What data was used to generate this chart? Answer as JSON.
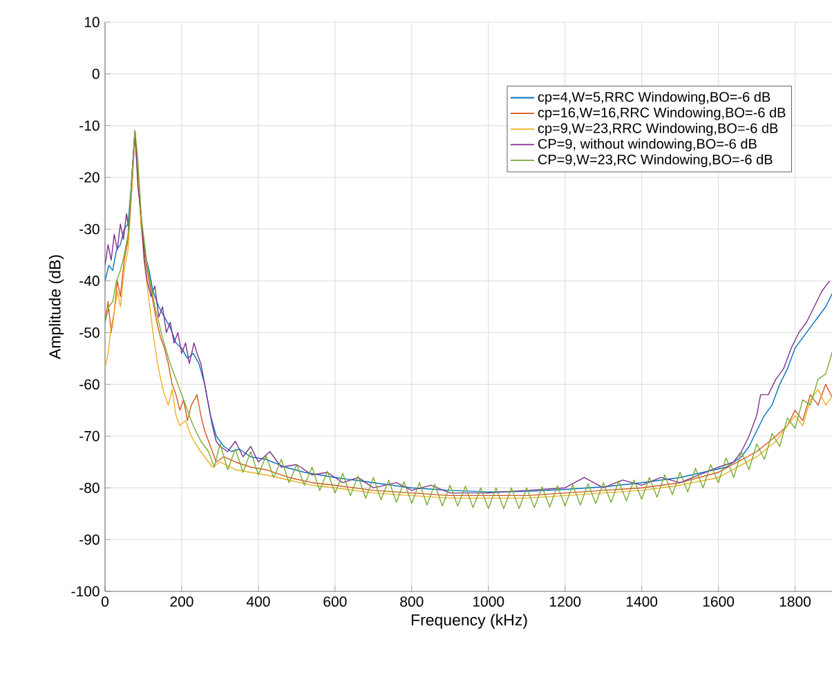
{
  "chart_data": {
    "type": "line",
    "xlabel": "Frequency (kHz)",
    "ylabel": "Amplitude (dB)",
    "xlim": [
      0,
      1900
    ],
    "ylim": [
      -100,
      10
    ],
    "xticks": [
      0,
      200,
      400,
      600,
      800,
      1000,
      1200,
      1400,
      1600,
      1800
    ],
    "yticks": [
      -100,
      -90,
      -80,
      -70,
      -60,
      -50,
      -40,
      -30,
      -20,
      -10,
      0,
      10
    ],
    "grid": true,
    "legend": "top right",
    "marker": "none",
    "line_style": "solid",
    "series": [
      {
        "name": "cp=4,W=5,RRC Windowing,BO=-6 dB",
        "color": "#0072bd",
        "x": [
          0,
          10,
          20,
          30,
          40,
          50,
          60,
          68,
          78,
          86,
          95,
          105,
          115,
          125,
          140,
          155,
          170,
          185,
          200,
          215,
          230,
          245,
          260,
          275,
          290,
          310,
          330,
          350,
          380,
          420,
          470,
          520,
          600,
          700,
          800,
          900,
          1000,
          1100,
          1200,
          1300,
          1400,
          1500,
          1560,
          1620,
          1660,
          1680,
          1700,
          1720,
          1740,
          1760,
          1780,
          1800,
          1820,
          1840,
          1860,
          1880,
          1900
        ],
        "values": [
          -40,
          -37,
          -38,
          -34,
          -33,
          -30,
          -29,
          -22,
          -11,
          -20,
          -29,
          -35,
          -38,
          -42,
          -45,
          -47,
          -49,
          -52,
          -53,
          -55,
          -54,
          -56,
          -60,
          -66,
          -70,
          -72,
          -73,
          -72.5,
          -74,
          -74.5,
          -76,
          -77,
          -78,
          -79,
          -80,
          -80.5,
          -80.8,
          -80.7,
          -80.3,
          -79.8,
          -79,
          -78,
          -77,
          -76,
          -74,
          -72,
          -69,
          -66,
          -64,
          -60,
          -57,
          -53,
          -51,
          -49,
          -47,
          -45,
          -42
        ]
      },
      {
        "name": "cp=16,W=16,RRC Windowing,BO=-6 dB",
        "color": "#d95319",
        "x": [
          0,
          8,
          16,
          24,
          32,
          40,
          50,
          60,
          70,
          78,
          86,
          95,
          105,
          115,
          125,
          135,
          145,
          155,
          165,
          175,
          185,
          195,
          205,
          215,
          225,
          240,
          250,
          260,
          275,
          290,
          310,
          340,
          380,
          420,
          480,
          540,
          600,
          700,
          800,
          900,
          1000,
          1100,
          1200,
          1300,
          1400,
          1500,
          1600,
          1650,
          1700,
          1750,
          1780,
          1800,
          1820,
          1840,
          1860,
          1880,
          1900
        ],
        "values": [
          -48,
          -44,
          -50,
          -46,
          -40,
          -43,
          -36,
          -32,
          -22,
          -12,
          -20,
          -30,
          -36,
          -40,
          -44,
          -48,
          -51,
          -53,
          -56,
          -60,
          -62,
          -65,
          -63,
          -67,
          -64,
          -62,
          -66,
          -69,
          -72,
          -75,
          -74,
          -75,
          -76,
          -76.5,
          -78,
          -79,
          -79.5,
          -80.5,
          -81,
          -81.5,
          -81.5,
          -81.5,
          -81,
          -80.5,
          -80,
          -79,
          -77,
          -75,
          -73,
          -70,
          -68,
          -65,
          -67,
          -62,
          -64,
          -60,
          -63
        ]
      },
      {
        "name": "cp=9,W=23,RRC Windowing,BO=-6 dB",
        "color": "#edb120",
        "x": [
          0,
          8,
          16,
          24,
          32,
          40,
          50,
          60,
          70,
          78,
          86,
          95,
          105,
          115,
          125,
          135,
          145,
          155,
          165,
          175,
          185,
          195,
          210,
          225,
          240,
          260,
          280,
          300,
          340,
          380,
          420,
          480,
          540,
          600,
          700,
          800,
          900,
          1000,
          1100,
          1200,
          1300,
          1400,
          1500,
          1600,
          1650,
          1700,
          1750,
          1800,
          1820,
          1840,
          1860,
          1880,
          1900
        ],
        "values": [
          -57,
          -54,
          -49,
          -46,
          -42,
          -45,
          -38,
          -34,
          -22,
          -11,
          -20,
          -30,
          -38,
          -44,
          -50,
          -55,
          -59,
          -62,
          -64,
          -61,
          -66,
          -68,
          -67,
          -70,
          -72,
          -74,
          -76,
          -75,
          -76.5,
          -77,
          -77.5,
          -78.5,
          -79.5,
          -80,
          -81,
          -81.5,
          -82,
          -82,
          -82,
          -81.5,
          -81,
          -80.5,
          -79.5,
          -78,
          -76,
          -74,
          -71,
          -66,
          -68,
          -63,
          -61,
          -64,
          -62
        ]
      },
      {
        "name": "CP=9, without windowing,BO=-6 dB",
        "color": "#7e2f8e",
        "x": [
          0,
          8,
          16,
          24,
          32,
          40,
          48,
          56,
          62,
          70,
          78,
          86,
          94,
          102,
          110,
          120,
          130,
          140,
          150,
          160,
          170,
          180,
          190,
          200,
          210,
          220,
          232,
          240,
          250,
          260,
          270,
          280,
          290,
          300,
          320,
          340,
          360,
          380,
          400,
          430,
          460,
          500,
          540,
          580,
          620,
          660,
          700,
          760,
          800,
          850,
          900,
          1000,
          1100,
          1200,
          1250,
          1300,
          1350,
          1400,
          1450,
          1500,
          1550,
          1600,
          1640,
          1660,
          1680,
          1700,
          1710,
          1730,
          1750,
          1770,
          1790,
          1810,
          1830,
          1850,
          1870,
          1890
        ],
        "values": [
          -37,
          -33,
          -36,
          -31,
          -34,
          -29,
          -32,
          -27,
          -30,
          -20,
          -11,
          -22,
          -27,
          -36,
          -40,
          -43,
          -41,
          -47,
          -45,
          -50,
          -48,
          -52,
          -50,
          -54,
          -52,
          -56,
          -52,
          -54,
          -56,
          -60,
          -64,
          -68,
          -71,
          -72,
          -73,
          -71,
          -74,
          -72,
          -75,
          -73,
          -76,
          -75.5,
          -77.5,
          -77,
          -79,
          -78,
          -80,
          -79,
          -80.5,
          -79.5,
          -81,
          -81,
          -80.5,
          -80,
          -78,
          -80,
          -78.5,
          -79.5,
          -78,
          -79,
          -77.5,
          -76,
          -75,
          -73,
          -70,
          -66,
          -62,
          -62,
          -59,
          -57,
          -53,
          -50,
          -48,
          -45,
          -42,
          -40
        ]
      },
      {
        "name": "CP=9,W=23,RC Windowing,BO=-6 dB",
        "color": "#77ac30",
        "x": [
          0,
          10,
          20,
          30,
          40,
          50,
          60,
          70,
          78,
          85,
          95,
          110,
          130,
          150,
          170,
          190,
          210,
          230,
          250,
          270,
          285,
          300,
          320,
          340,
          360,
          380,
          400,
          420,
          440,
          460,
          480,
          500,
          520,
          540,
          560,
          580,
          600,
          620,
          640,
          660,
          680,
          700,
          720,
          740,
          760,
          780,
          800,
          820,
          840,
          860,
          880,
          900,
          920,
          940,
          960,
          980,
          1000,
          1020,
          1040,
          1060,
          1080,
          1100,
          1120,
          1140,
          1160,
          1180,
          1200,
          1220,
          1240,
          1260,
          1280,
          1300,
          1320,
          1340,
          1360,
          1380,
          1400,
          1420,
          1440,
          1460,
          1480,
          1500,
          1520,
          1540,
          1560,
          1580,
          1600,
          1620,
          1640,
          1660,
          1680,
          1700,
          1720,
          1740,
          1760,
          1780,
          1800,
          1820,
          1840,
          1860,
          1880,
          1900
        ],
        "values": [
          -48,
          -45,
          -44,
          -40,
          -38,
          -35,
          -31,
          -20,
          -11,
          -16,
          -28,
          -37,
          -45,
          -51,
          -56,
          -60,
          -64,
          -68,
          -71,
          -73,
          -76,
          -71.5,
          -76.5,
          -72.5,
          -77,
          -73,
          -77.5,
          -73.8,
          -78,
          -74.5,
          -79,
          -75.5,
          -79.5,
          -76,
          -80.5,
          -76.8,
          -81,
          -77.2,
          -81.5,
          -77.7,
          -82,
          -78,
          -82.3,
          -78.5,
          -82.8,
          -78.8,
          -83,
          -79,
          -83.3,
          -79.3,
          -83.5,
          -79.5,
          -83.5,
          -79.7,
          -83.8,
          -80,
          -84,
          -80,
          -84,
          -80,
          -84,
          -80,
          -83.8,
          -79.8,
          -83.7,
          -79.6,
          -83.5,
          -79.4,
          -83.3,
          -79.2,
          -83,
          -79,
          -82.8,
          -78.7,
          -82.5,
          -78.5,
          -82.2,
          -78,
          -81.8,
          -77.5,
          -81.3,
          -77,
          -80.8,
          -76.2,
          -80,
          -75.5,
          -79,
          -74.2,
          -78,
          -73,
          -76.5,
          -71.5,
          -74.5,
          -69.5,
          -72,
          -66.5,
          -68.5,
          -63,
          -64,
          -59,
          -58,
          -53
        ]
      }
    ]
  }
}
